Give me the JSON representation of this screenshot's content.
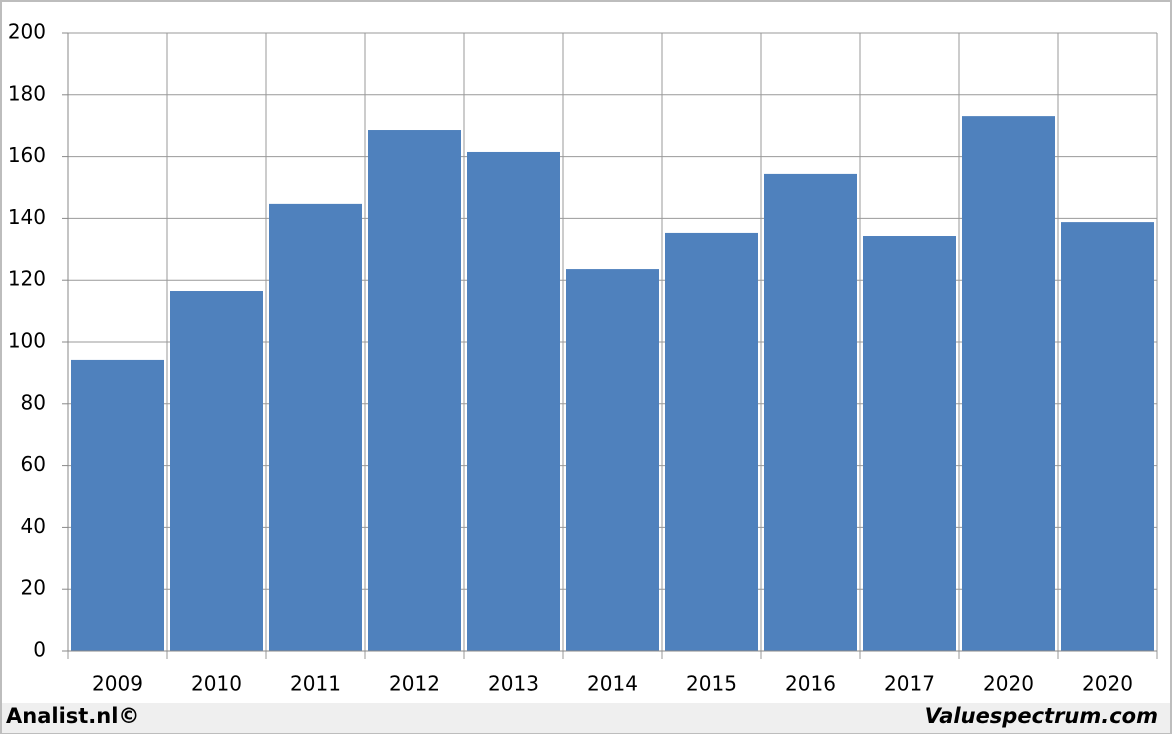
{
  "chart_data": {
    "type": "bar",
    "categories": [
      "2009",
      "2010",
      "2011",
      "2012",
      "2013",
      "2014",
      "2015",
      "2016",
      "2017",
      "2020",
      "2020"
    ],
    "values": [
      94.2,
      116.5,
      144.7,
      168.6,
      161.5,
      123.6,
      135.3,
      154.4,
      134.3,
      173.1,
      138.8
    ],
    "color": "#4f81bd",
    "ylim": [
      0,
      200
    ],
    "yticks": [
      0,
      20,
      40,
      60,
      80,
      100,
      120,
      140,
      160,
      180,
      200
    ],
    "grid": true,
    "annotations": [
      "Analist.nl©",
      "Valuespectrum.com"
    ]
  }
}
